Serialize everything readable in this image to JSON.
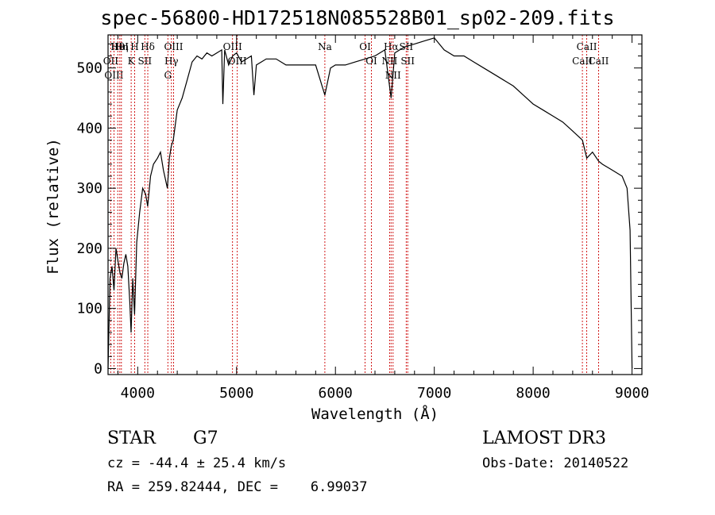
{
  "title": "spec-56800-HD172518N085528B01_sp02-209.fits",
  "info": {
    "object_class": "STAR",
    "subclass": "G7",
    "survey": "LAMOST DR3",
    "redshift": "cz = -44.4 ± 25.4 km/s",
    "obs_date": "Obs-Date: 20140522",
    "coords": "RA = 259.82444, DEC =    6.99037"
  },
  "colors": {
    "spectrum": "#000000",
    "lines": "#cc0000",
    "axes": "#000000"
  },
  "chart_data": {
    "type": "line",
    "xlabel": "Wavelength (Å)",
    "ylabel": "Flux (relative)",
    "xlim": [
      3700,
      9100
    ],
    "ylim": [
      -10,
      555
    ],
    "xticks": [
      4000,
      5000,
      6000,
      7000,
      8000,
      9000
    ],
    "yticks": [
      0,
      100,
      200,
      300,
      400,
      500
    ],
    "grid": false,
    "series": [
      {
        "x": [
          3700,
          3720,
          3740,
          3760,
          3780,
          3800,
          3820,
          3840,
          3860,
          3880,
          3900,
          3920,
          3933,
          3950,
          3968,
          3990,
          4020,
          4050,
          4080,
          4101,
          4130,
          4160,
          4200,
          4230,
          4260,
          4300,
          4320,
          4340,
          4360,
          4400,
          4450,
          4500,
          4550,
          4600,
          4650,
          4700,
          4750,
          4800,
          4850,
          4861,
          4880,
          4920,
          4960,
          5000,
          5050,
          5100,
          5150,
          5175,
          5200,
          5250,
          5300,
          5400,
          5500,
          5600,
          5700,
          5800,
          5893,
          5950,
          6000,
          6100,
          6200,
          6300,
          6400,
          6500,
          6563,
          6600,
          6650,
          6700,
          6800,
          6900,
          7000,
          7100,
          7200,
          7300,
          7400,
          7500,
          7600,
          7700,
          7800,
          7900,
          8000,
          8100,
          8200,
          8300,
          8400,
          8498,
          8542,
          8600,
          8662,
          8700,
          8800,
          8900,
          8950,
          8980,
          9000
        ],
        "values": [
          0,
          150,
          170,
          130,
          200,
          180,
          160,
          150,
          175,
          190,
          170,
          110,
          60,
          150,
          90,
          210,
          260,
          300,
          290,
          270,
          320,
          340,
          350,
          360,
          330,
          300,
          350,
          370,
          380,
          430,
          450,
          480,
          510,
          520,
          515,
          525,
          520,
          525,
          530,
          440,
          530,
          505,
          520,
          525,
          510,
          515,
          520,
          455,
          505,
          510,
          515,
          515,
          505,
          505,
          505,
          505,
          455,
          500,
          505,
          505,
          510,
          515,
          520,
          530,
          450,
          525,
          530,
          535,
          540,
          545,
          550,
          530,
          520,
          520,
          510,
          500,
          490,
          480,
          470,
          455,
          440,
          430,
          420,
          410,
          395,
          380,
          350,
          360,
          345,
          340,
          330,
          320,
          300,
          230,
          0
        ]
      }
    ],
    "lines": [
      {
        "label": "Hθ",
        "wave": 3798
      },
      {
        "label": "OII",
        "wave": 3727
      },
      {
        "label": "OIII",
        "wave": 3760
      },
      {
        "label": "HeI",
        "wave": 3819
      },
      {
        "label": "Hη",
        "wave": 3835
      },
      {
        "label": "K",
        "wave": 3934
      },
      {
        "label": "H",
        "wave": 3969
      },
      {
        "label": "SII",
        "wave": 4072
      },
      {
        "label": "Hδ",
        "wave": 4102
      },
      {
        "label": "OIII",
        "wave": 4363
      },
      {
        "label": "Hγ",
        "wave": 4341
      },
      {
        "label": "G",
        "wave": 4305
      },
      {
        "label": "OIII",
        "wave": 4959
      },
      {
        "label": "OIII",
        "wave": 5007
      },
      {
        "label": "Na",
        "wave": 5893
      },
      {
        "label": "OI",
        "wave": 6300
      },
      {
        "label": "OI",
        "wave": 6364
      },
      {
        "label": "Hα",
        "wave": 6563
      },
      {
        "label": "SII",
        "wave": 6716
      },
      {
        "label": "NII",
        "wave": 6548
      },
      {
        "label": "NII",
        "wave": 6583
      },
      {
        "label": "SII",
        "wave": 6731
      },
      {
        "label": "CaII",
        "wave": 8542
      },
      {
        "label": "CaII",
        "wave": 8498
      },
      {
        "label": "CaII",
        "wave": 8662
      }
    ]
  }
}
